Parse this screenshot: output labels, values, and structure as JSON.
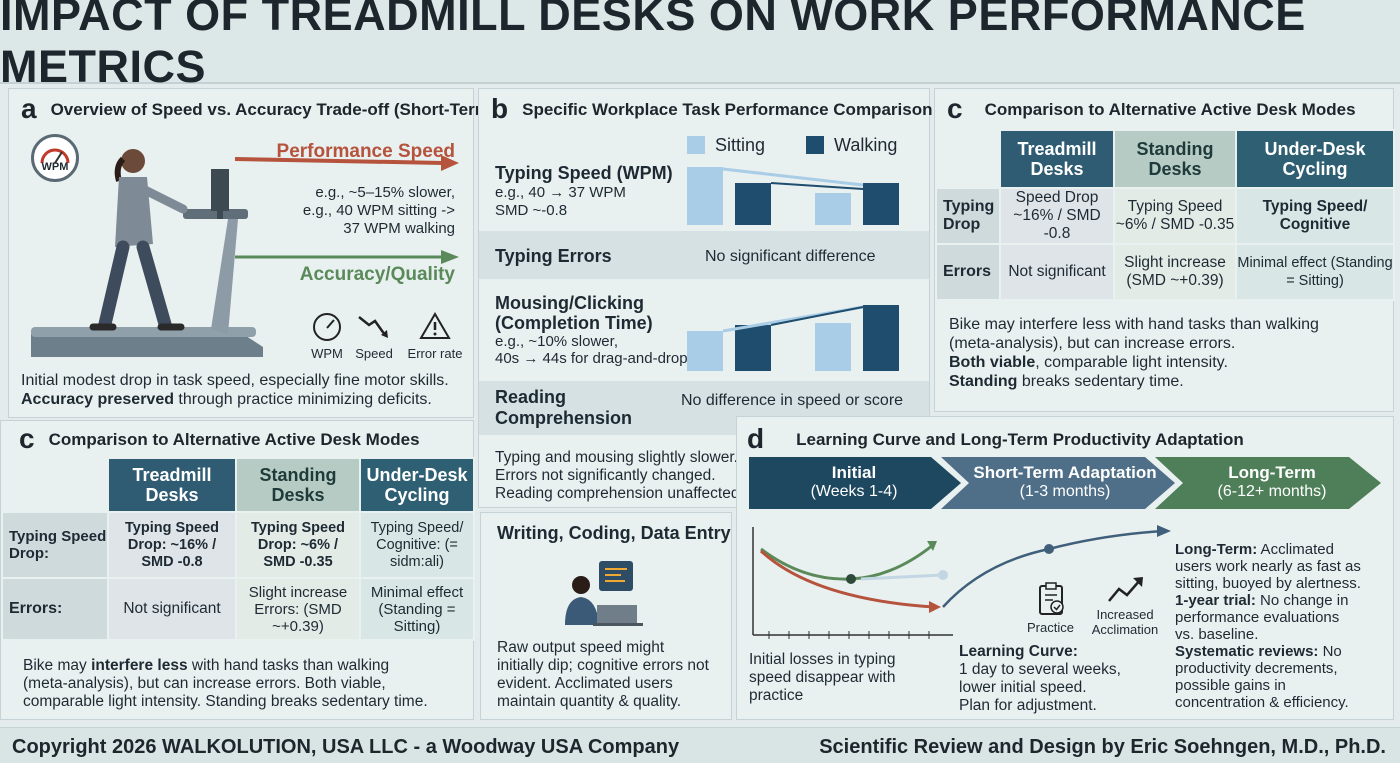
{
  "title": "IMPACT OF TREADMILL DESKS ON WORK PERFORMANCE METRICS",
  "panel_a": {
    "letter": "a",
    "heading": "Overview of Speed vs. Accuracy Trade-off (Short-Term)",
    "gauge_label": "WPM",
    "speed_label": "Performance Speed",
    "speed_note_1": "e.g., ~5–15% slower,",
    "speed_note_2": "e.g., 40 WPM sitting ->",
    "speed_note_3": "37 WPM walking",
    "accuracy_label": "Accuracy/Quality",
    "icons": [
      {
        "icon": "speedometer-icon",
        "label": "WPM"
      },
      {
        "icon": "trend-down-icon",
        "label": "Speed"
      },
      {
        "icon": "warning-icon",
        "label": "Error rate"
      }
    ],
    "summary_1": "Initial modest drop in task speed, especially fine motor skills.",
    "summary_2_bold": "Accuracy preserved",
    "summary_2_rest": " through practice minimizing deficits."
  },
  "panel_b": {
    "letter": "b",
    "heading": "Specific Workplace Task Performance Comparison",
    "legend_sitting": "Sitting",
    "legend_walking": "Walking",
    "typing_title": "Typing Speed (WPM)",
    "typing_note_1": "e.g., 40 → 37 WPM",
    "typing_note_2": "SMD ~-0.8",
    "errors_title": "Typing Errors",
    "errors_value": "No significant difference",
    "mousing_title_1": "Mousing/Clicking",
    "mousing_title_2": "(Completion Time)",
    "mousing_note_1": "e.g., ~10% slower,",
    "mousing_note_2": "40s → 44s for drag-and-drop",
    "reading_title_1": "Reading",
    "reading_title_2": "Comprehension",
    "reading_value": "No difference in speed or score",
    "summary_1": "Typing and mousing slightly slower.",
    "summary_2": "Errors not significantly changed.",
    "summary_3": "Reading comprehension unaffected."
  },
  "panel_writing": {
    "heading": "Writing, Coding, Data Entry",
    "text_1": "Raw output speed might",
    "text_2": "initially dip; cognitive errors not",
    "text_3": "evident. Acclimated users",
    "text_4": "maintain quantity & quality."
  },
  "panel_c_top": {
    "letter": "c",
    "heading": "Comparison to Alternative Active Desk Modes",
    "col_1": "Treadmill Desks",
    "col_2": "Standing Desks",
    "col_3": "Under-Desk Cycling",
    "row_1_label": "Typing Drop",
    "row_1": [
      "Speed Drop ~16% / SMD -0.8",
      "Typing Speed ~6% / SMD -0.35",
      "Typing Speed/ Cognitive"
    ],
    "row_2_label": "Errors",
    "row_2": [
      "Not significant",
      "Slight increase (SMD ~+0.39)",
      "Minimal effect (Standing = Sitting)"
    ],
    "text_1": "Bike may interfere less with hand tasks than walking",
    "text_2": "(meta-analysis), but can increase errors.",
    "text_3_bold": "Both viable",
    "text_3_rest": ", comparable light intensity.",
    "text_4_bold": "Standing",
    "text_4_rest": " breaks sedentary time."
  },
  "panel_c_bottom": {
    "letter": "c",
    "heading": "Comparison to Alternative Active Desk Modes",
    "col_1": "Treadmill Desks",
    "col_2": "Standing Desks",
    "col_3": "Under-Desk Cycling",
    "row_1_label": "Typing Speed Drop:",
    "row_1": [
      "Typing Speed Drop: ~16% / SMD -0.8",
      "Typing Speed Drop: ~6% / SMD -0.35",
      "Typing Speed/ Cognitive: (= sidm:ali)"
    ],
    "row_2_label": "Errors:",
    "row_2": [
      "Not significant",
      "Slight increase Errors: (SMD ~+0.39)",
      "Minimal effect (Standing = Sitting)"
    ],
    "text_1_a": "Bike may ",
    "text_1_bold": "interfere less",
    "text_1_b": " with hand tasks than walking",
    "text_2": "(meta-analysis), but can increase errors. Both viable,",
    "text_3": "comparable light intensity. Standing breaks sedentary time."
  },
  "panel_d": {
    "letter": "d",
    "heading": "Learning Curve and Long-Term Productivity Adaptation",
    "phase_1_title": "Initial",
    "phase_1_sub": "(Weeks 1-4)",
    "phase_2_title": "Short-Term Adaptation",
    "phase_2_sub": "(1-3 months)",
    "phase_3_title": "Long-Term",
    "phase_3_sub": "(6-12+ months)",
    "caption_1": "Initial losses in typing",
    "caption_2": "speed disappear with",
    "caption_3": "practice",
    "practice_label": "Practice",
    "accl_label_1": "Increased",
    "accl_label_2": "Acclimation",
    "lc_bold": "Learning Curve:",
    "lc_1": "1 day to several weeks,",
    "lc_2": "lower initial speed.",
    "lc_3": "Plan for adjustment.",
    "lt_bold": "Long-Term:",
    "lt_rest_1": " Acclimated",
    "lt_rest_2": "users work nearly as fast as",
    "lt_rest_3": "sitting, buoyed by alertness.",
    "yr_bold": "1-year trial:",
    "yr_rest_1": " No change in",
    "yr_rest_2": "performance evaluations",
    "yr_rest_3": "vs. baseline.",
    "sr_bold": "Systematic reviews:",
    "sr_rest_1": " No",
    "sr_rest_2": "productivity decrements,",
    "sr_rest_3": "possible gains in",
    "sr_rest_4": "concentration & efficiency."
  },
  "footer": {
    "left": "Copyright 2026 WALKOLUTION, USA LLC - a Woodway USA Company",
    "right": "Scientific Review and Design by Eric Soehngen, M.D., Ph.D."
  },
  "colors": {
    "speed_arrow": "#b5533c",
    "accuracy_arrow": "#5b8a5a",
    "walking_bar": "#1f4d6e",
    "sitting_bar": "#a9cde6"
  }
}
